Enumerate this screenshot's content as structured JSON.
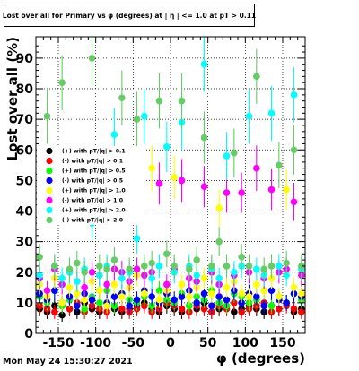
{
  "title": "Lost over all for Primary vs φ (degrees) at | η | <= 1.0 at pT > 0.11",
  "timestamp": "Mon May 24 15:30:27 2021",
  "chart_data": {
    "type": "scatter",
    "title": "Lost over all for Primary vs φ (degrees) at | η | <= 1.0 at pT > 0.11",
    "xlabel": "φ (degrees)",
    "ylabel": "Lost over all (%)",
    "xlim": [
      -180,
      180
    ],
    "ylim": [
      0,
      97
    ],
    "x_ticks": [
      -150,
      -100,
      -50,
      0,
      50,
      100,
      150
    ],
    "y_ticks": [
      0,
      10,
      20,
      30,
      40,
      50,
      60,
      70,
      80,
      90
    ],
    "grid": true,
    "legend_position": "middle-left",
    "series": [
      {
        "name": "(+) with pT/|q| > 0.1",
        "color": "#000000",
        "x": [
          -175,
          -165,
          -155,
          -145,
          -135,
          -125,
          -115,
          -105,
          -95,
          -85,
          -75,
          -65,
          -55,
          -45,
          -35,
          -25,
          -15,
          -5,
          5,
          15,
          25,
          35,
          45,
          55,
          65,
          75,
          85,
          95,
          105,
          115,
          125,
          135,
          145,
          155,
          165,
          175
        ],
        "y": [
          8,
          7,
          9,
          6,
          8,
          7,
          10,
          8,
          7,
          9,
          8,
          7,
          8,
          9,
          10,
          8,
          7,
          9,
          8,
          7,
          9,
          8,
          10,
          7,
          8,
          9,
          7,
          8,
          9,
          8,
          7,
          9,
          8,
          10,
          7,
          8
        ]
      },
      {
        "name": "(-) with pT/|q| > 0.1",
        "color": "#ff0000",
        "x": [
          -175,
          -165,
          -155,
          -145,
          -135,
          -125,
          -115,
          -105,
          -95,
          -85,
          -75,
          -65,
          -55,
          -45,
          -35,
          -25,
          -15,
          -5,
          5,
          15,
          25,
          35,
          45,
          55,
          65,
          75,
          85,
          95,
          105,
          115,
          125,
          135,
          145,
          155,
          165,
          175
        ],
        "y": [
          9,
          8,
          7,
          9,
          8,
          10,
          7,
          9,
          8,
          7,
          9,
          8,
          7,
          8,
          9,
          7,
          8,
          10,
          9,
          8,
          7,
          9,
          8,
          7,
          9,
          8,
          10,
          7,
          8,
          9,
          10,
          7,
          8,
          9,
          8,
          7
        ]
      },
      {
        "name": "(+) with pT/|q| > 0.5",
        "color": "#00ff00",
        "x": [
          -175,
          -165,
          -155,
          -145,
          -135,
          -125,
          -115,
          -105,
          -95,
          -85,
          -75,
          -65,
          -55,
          -45,
          -35,
          -25,
          -15,
          -5,
          5,
          15,
          25,
          35,
          45,
          55,
          65,
          75,
          85,
          95,
          105,
          115,
          125,
          135,
          145,
          155,
          165,
          175
        ],
        "y": [
          12,
          10,
          14,
          9,
          11,
          13,
          8,
          12,
          10,
          14,
          9,
          13,
          11,
          10,
          12,
          9,
          14,
          11,
          10,
          13,
          9,
          12,
          11,
          14,
          10,
          9,
          13,
          12,
          10,
          11,
          14,
          9,
          12,
          10,
          13,
          11
        ]
      },
      {
        "name": "(-) with pT/|q| > 0.5",
        "color": "#0000ff",
        "x": [
          -175,
          -165,
          -155,
          -145,
          -135,
          -125,
          -115,
          -105,
          -95,
          -85,
          -75,
          -65,
          -55,
          -45,
          -35,
          -25,
          -15,
          -5,
          5,
          15,
          25,
          35,
          45,
          55,
          65,
          75,
          85,
          95,
          105,
          115,
          125,
          135,
          145,
          155,
          165,
          175
        ],
        "y": [
          13,
          11,
          14,
          10,
          12,
          9,
          13,
          11,
          14,
          10,
          12,
          13,
          9,
          11,
          14,
          12,
          10,
          13,
          11,
          12,
          14,
          10,
          13,
          9,
          12,
          11,
          14,
          10,
          13,
          12,
          9,
          14,
          11,
          10,
          13,
          12
        ]
      },
      {
        "name": "(+) with pT/|q| > 1.0",
        "color": "#ffff00",
        "x": [
          -175,
          -165,
          -155,
          -145,
          -135,
          -125,
          -115,
          -105,
          -95,
          -85,
          -75,
          -65,
          -55,
          -45,
          -35,
          -25,
          -15,
          -5,
          5,
          15,
          25,
          35,
          45,
          55,
          65,
          75,
          85,
          95,
          105,
          115,
          125,
          135,
          145,
          155,
          165,
          175
        ],
        "y": [
          16,
          12,
          18,
          10,
          15,
          13,
          11,
          17,
          14,
          9,
          16,
          12,
          15,
          19,
          13,
          54,
          11,
          14,
          51,
          16,
          12,
          15,
          18,
          13,
          41,
          15,
          17,
          13,
          12,
          16,
          14,
          18,
          12,
          47,
          15,
          13
        ]
      },
      {
        "name": "(-) with pT/|q| > 1.0",
        "color": "#ff00ff",
        "x": [
          -175,
          -165,
          -155,
          -145,
          -135,
          -125,
          -115,
          -105,
          -95,
          -85,
          -75,
          -65,
          -55,
          -45,
          -35,
          -25,
          -15,
          -5,
          5,
          15,
          25,
          35,
          45,
          55,
          65,
          75,
          85,
          95,
          105,
          115,
          125,
          135,
          145,
          155,
          165,
          175
        ],
        "y": [
          18,
          14,
          21,
          16,
          20,
          17,
          15,
          20,
          19,
          16,
          21,
          20,
          17,
          21,
          19,
          20,
          49,
          16,
          21,
          50,
          18,
          17,
          48,
          20,
          16,
          46,
          19,
          46,
          20,
          54,
          18,
          47,
          20,
          21,
          43,
          19
        ]
      },
      {
        "name": "(+) with pT/|q| > 2.0",
        "color": "#00ffff",
        "x": [
          -175,
          -165,
          -155,
          -145,
          -135,
          -125,
          -115,
          -105,
          -95,
          -85,
          -75,
          -65,
          -55,
          -45,
          -35,
          -25,
          -15,
          -5,
          5,
          15,
          25,
          35,
          45,
          55,
          65,
          75,
          85,
          95,
          105,
          115,
          125,
          135,
          145,
          155,
          165,
          175
        ],
        "y": [
          19,
          42,
          22,
          18,
          20,
          17,
          21,
          36,
          19,
          22,
          65,
          18,
          20,
          31,
          71,
          18,
          22,
          61,
          20,
          69,
          22,
          19,
          88,
          21,
          18,
          58,
          20,
          22,
          71,
          21,
          19,
          72,
          22,
          19,
          78,
          21
        ]
      },
      {
        "name": "(-) with pT/|q| > 2.0",
        "color": "#66cc66",
        "x": [
          -175,
          -165,
          -155,
          -145,
          -135,
          -125,
          -115,
          -105,
          -95,
          -85,
          -75,
          -65,
          -55,
          -45,
          -35,
          -25,
          -15,
          -5,
          5,
          15,
          25,
          35,
          45,
          55,
          65,
          75,
          85,
          95,
          105,
          115,
          125,
          135,
          145,
          155,
          165,
          175
        ],
        "y": [
          25,
          71,
          22,
          82,
          21,
          23,
          20,
          90,
          22,
          21,
          24,
          77,
          21,
          70,
          22,
          23,
          76,
          26,
          22,
          76,
          21,
          24,
          64,
          22,
          30,
          22,
          59,
          25,
          22,
          84,
          21,
          22,
          55,
          23,
          60,
          22
        ]
      }
    ]
  }
}
